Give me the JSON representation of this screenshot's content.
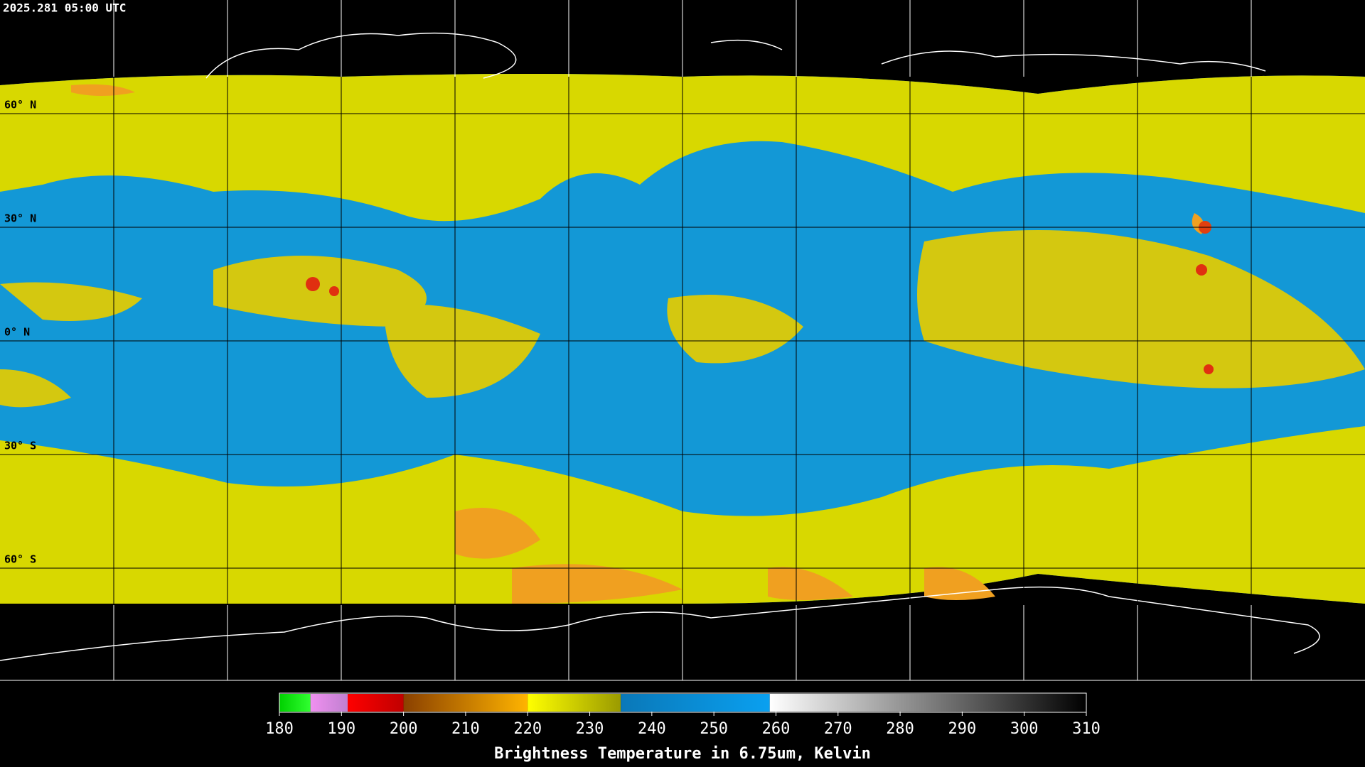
{
  "header": {
    "timestamp": "2025.281 05:00 UTC"
  },
  "map": {
    "latitude_labels": [
      "60° N",
      "30° N",
      "0° N",
      "30° S",
      "60° S"
    ]
  },
  "colorbar": {
    "min": 180,
    "max": 310,
    "ticks": [
      180,
      190,
      200,
      210,
      220,
      230,
      240,
      250,
      260,
      270,
      280,
      290,
      300,
      310
    ],
    "label": "Brightness Temperature in 6.75um, Kelvin",
    "segments": [
      {
        "from": 180,
        "to": 185,
        "color_start": "#00d000",
        "color_end": "#30ff30"
      },
      {
        "from": 185,
        "to": 191,
        "color_start": "#f090f0",
        "color_end": "#c080d0"
      },
      {
        "from": 191,
        "to": 200,
        "color_start": "#ff0000",
        "color_end": "#c00000"
      },
      {
        "from": 200,
        "to": 220,
        "color_start": "#8a4000",
        "color_end": "#ffb400"
      },
      {
        "from": 220,
        "to": 235,
        "color_start": "#ffff00",
        "color_end": "#9a9a00"
      },
      {
        "from": 235,
        "to": 259,
        "color_start": "#0a78b8",
        "color_end": "#0aa0f0"
      },
      {
        "from": 259,
        "to": 310,
        "color_start": "#ffffff",
        "color_end": "#000000"
      }
    ]
  }
}
